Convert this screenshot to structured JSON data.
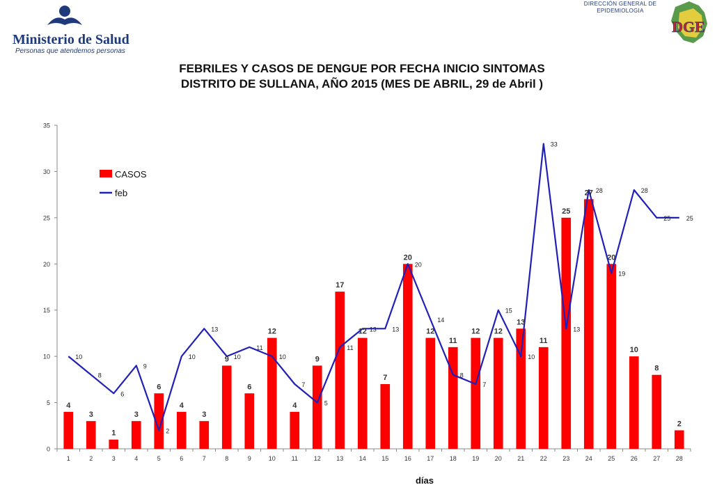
{
  "header": {
    "logo_title": "Ministerio de Salud",
    "logo_subtitle": "Personas que atendemos personas",
    "dge_line1": "DIRECCIÓN GENERAL DE",
    "dge_line2": "EPIDEMIOLOGIA",
    "dge_logo_text": "DGE"
  },
  "title_line1": "FEBRILES Y CASOS DE DENGUE POR FECHA INICIO SINTOMAS",
  "title_line2": "DISTRITO DE SULLANA, AÑO 2015 (MES DE ABRIL, 29 de Abril )",
  "colors": {
    "bar": "#ff0000",
    "line": "#2020b8",
    "axis": "#888888",
    "logo_blue": "#1f3a7a",
    "dge_red": "#c0282a",
    "dge_green": "#3c8a2a"
  },
  "chart_data": {
    "type": "bar",
    "xlabel": "días",
    "ylabel": "",
    "ylim": [
      0,
      35
    ],
    "yticks": [
      0,
      5,
      10,
      15,
      20,
      25,
      30,
      35
    ],
    "grid": false,
    "legend_position": "top-left",
    "categories": [
      "1",
      "2",
      "3",
      "4",
      "5",
      "6",
      "7",
      "8",
      "9",
      "10",
      "11",
      "12",
      "13",
      "14",
      "15",
      "16",
      "17",
      "18",
      "19",
      "20",
      "21",
      "22",
      "23",
      "24",
      "25",
      "26",
      "27",
      "28"
    ],
    "series": [
      {
        "name": "CASOS",
        "type": "bar",
        "values": [
          4,
          3,
          1,
          3,
          6,
          4,
          3,
          9,
          6,
          12,
          4,
          9,
          17,
          12,
          7,
          20,
          12,
          11,
          12,
          12,
          13,
          11,
          25,
          27,
          20,
          10,
          8,
          2
        ]
      },
      {
        "name": "feb",
        "type": "line",
        "values": [
          10,
          8,
          6,
          9,
          2,
          10,
          13,
          10,
          11,
          10,
          7,
          5,
          11,
          13,
          13,
          20,
          14,
          8,
          7,
          15,
          10,
          33,
          13,
          28,
          19,
          28,
          25,
          25
        ]
      }
    ]
  }
}
